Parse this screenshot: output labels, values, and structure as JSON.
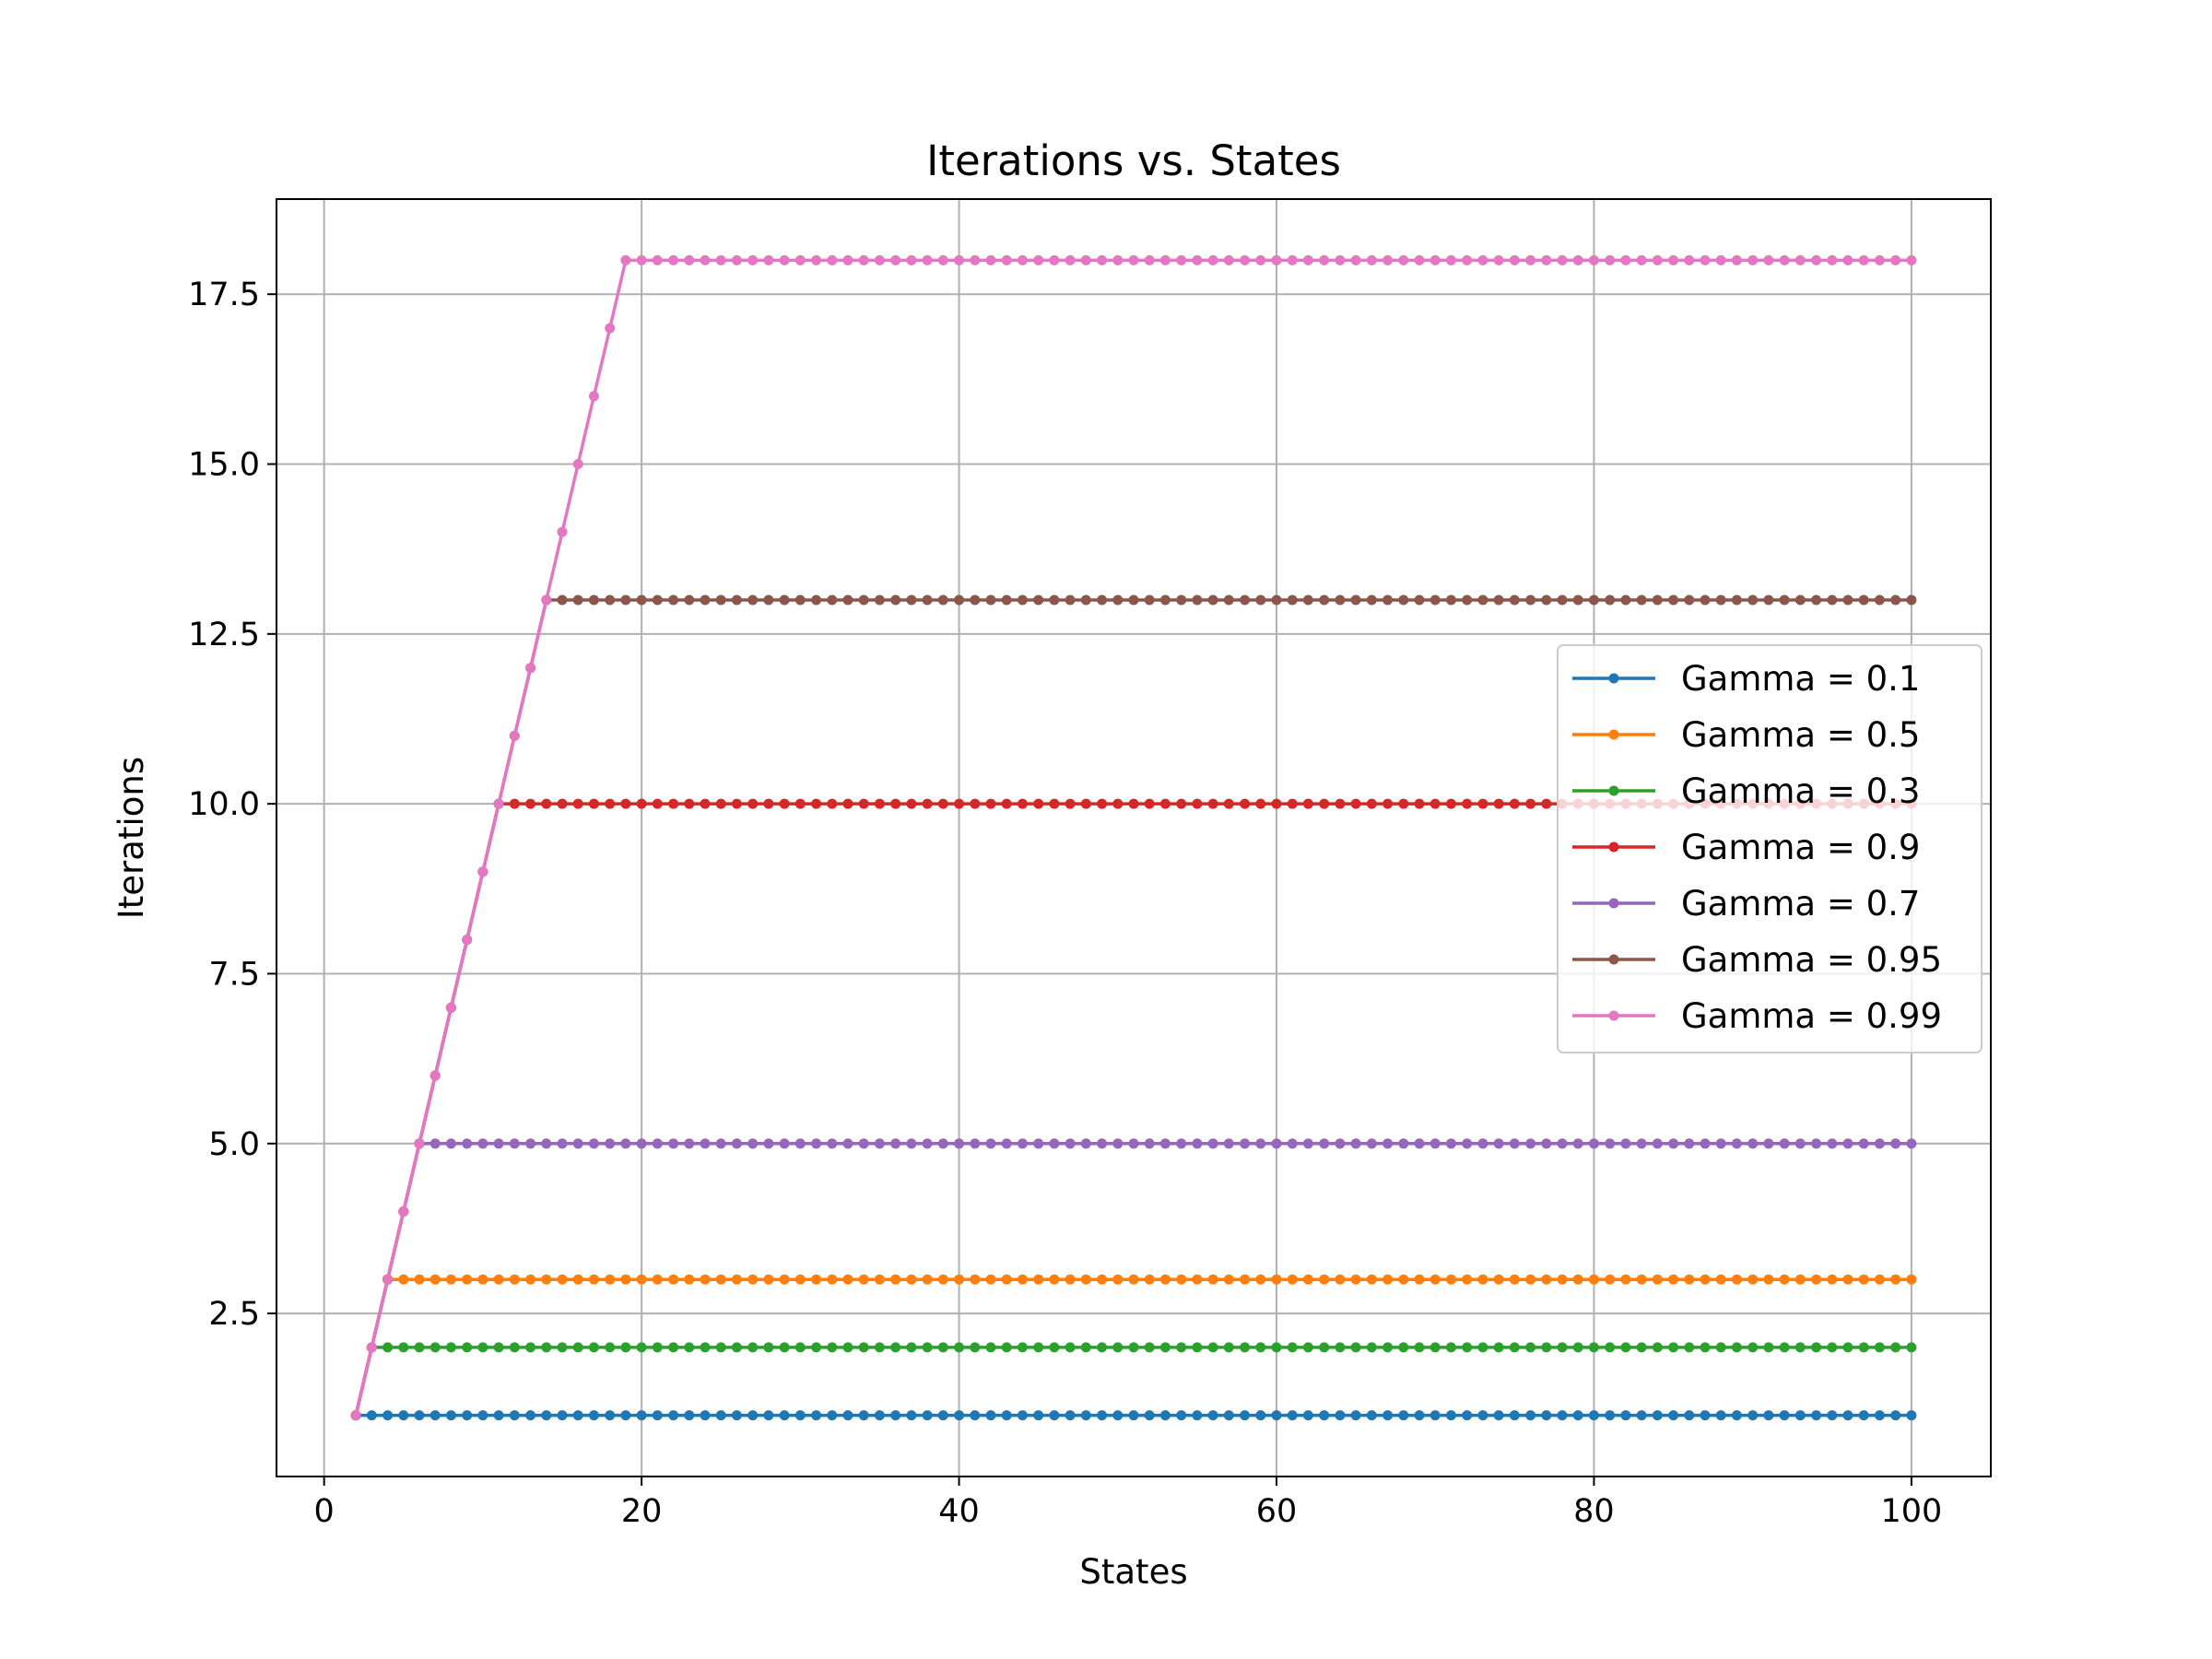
{
  "chart_data": {
    "type": "line",
    "title": "Iterations vs. States",
    "xlabel": "States",
    "ylabel": "Iterations",
    "xlim": [
      -3,
      105
    ],
    "ylim": [
      0.1,
      18.9
    ],
    "xticks": [
      0,
      20,
      40,
      60,
      80,
      100
    ],
    "xtick_labels": [
      "0",
      "20",
      "40",
      "60",
      "80",
      "100"
    ],
    "yticks": [
      2.5,
      5.0,
      7.5,
      10.0,
      12.5,
      15.0,
      17.5
    ],
    "ytick_labels": [
      "2.5",
      "5.0",
      "7.5",
      "10.0",
      "12.5",
      "15.0",
      "17.5"
    ],
    "grid": true,
    "legend_position": "center-right",
    "x_range": [
      2,
      100
    ],
    "series": [
      {
        "name": "Gamma = 0.1",
        "color": "#1f77b4",
        "rule": "y = min(x - 1, 1)",
        "plateau": 1
      },
      {
        "name": "Gamma = 0.5",
        "color": "#ff7f0e",
        "rule": "y = min(x - 1, 3)",
        "plateau": 3
      },
      {
        "name": "Gamma = 0.3",
        "color": "#2ca02c",
        "rule": "y = min(x - 1, 2)",
        "plateau": 2
      },
      {
        "name": "Gamma = 0.9",
        "color": "#d62728",
        "rule": "y = min(x - 1, 10)",
        "plateau": 10
      },
      {
        "name": "Gamma = 0.7",
        "color": "#9467bd",
        "rule": "y = min(x - 1, 5)",
        "plateau": 5
      },
      {
        "name": "Gamma = 0.95",
        "color": "#8c564b",
        "rule": "y = min(x - 1, 13)",
        "plateau": 13
      },
      {
        "name": "Gamma = 0.99",
        "color": "#e377c2",
        "rule": "y = min(x - 1, 18)",
        "plateau": 18
      }
    ]
  }
}
